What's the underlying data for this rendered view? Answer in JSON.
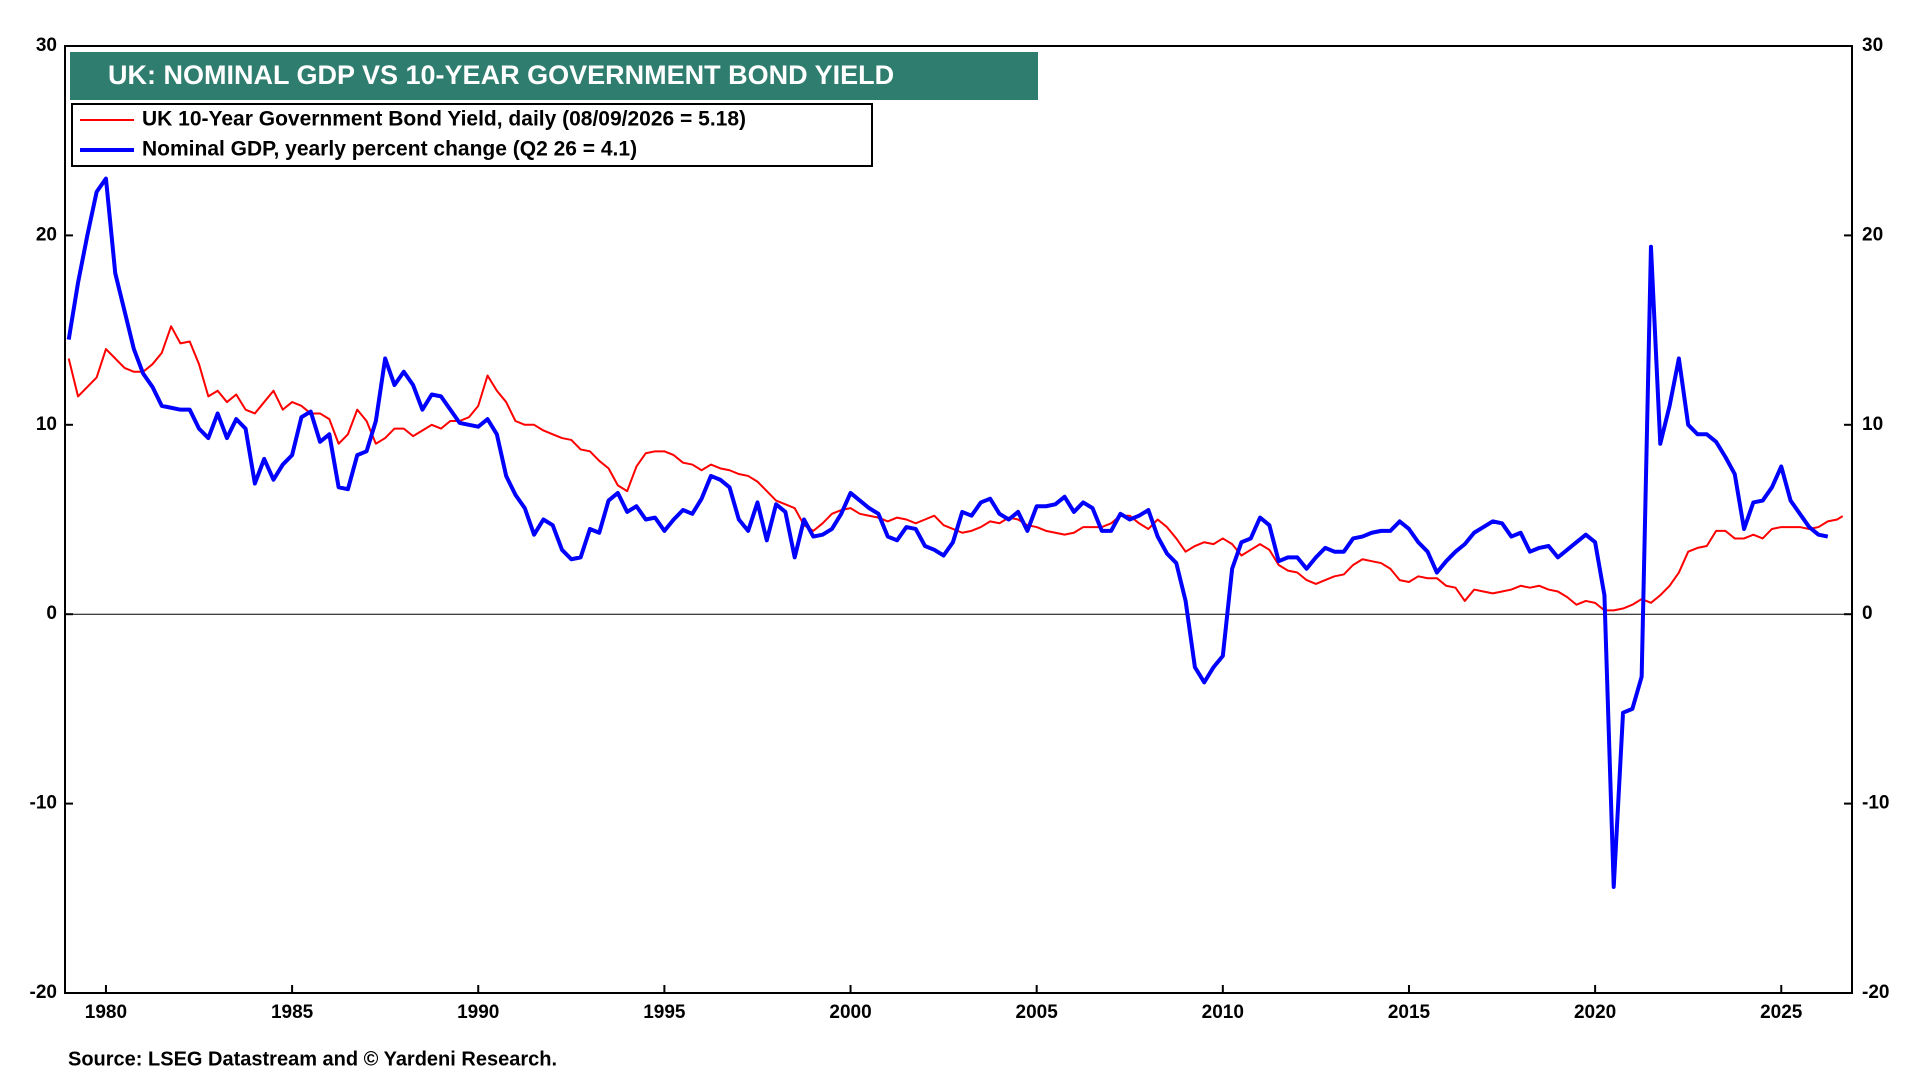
{
  "chart_data": {
    "type": "line",
    "title": "UK: NOMINAL GDP VS 10-YEAR GOVERNMENT BOND YIELD",
    "source": "Source: LSEG Datastream and © Yardeni Research.",
    "xlim": [
      1978.9,
      2026.9
    ],
    "xticks": [
      1980,
      1985,
      1990,
      1995,
      2000,
      2005,
      2010,
      2015,
      2020,
      2025
    ],
    "ylim": [
      -20,
      30
    ],
    "yticks": [
      -20,
      -10,
      0,
      10,
      20,
      30
    ],
    "y2lim": [
      -20,
      30
    ],
    "y2ticks": [
      -20,
      -10,
      0,
      10,
      20,
      30
    ],
    "zero_line": true,
    "legend": "top-left",
    "series": [
      {
        "name": "UK 10-Year Government Bond Yield, daily (08/09/2026 = 5.18)",
        "color": "#ff0000",
        "x": [
          1979,
          1979.25,
          1979.5,
          1979.75,
          1980,
          1980.25,
          1980.5,
          1980.75,
          1981,
          1981.25,
          1981.5,
          1981.75,
          1982,
          1982.25,
          1982.5,
          1982.75,
          1983,
          1983.25,
          1983.5,
          1983.75,
          1984,
          1984.25,
          1984.5,
          1984.75,
          1985,
          1985.25,
          1985.5,
          1985.75,
          1986,
          1986.25,
          1986.5,
          1986.75,
          1987,
          1987.25,
          1987.5,
          1987.75,
          1988,
          1988.25,
          1988.5,
          1988.75,
          1989,
          1989.25,
          1989.5,
          1989.75,
          1990,
          1990.25,
          1990.5,
          1990.75,
          1991,
          1991.25,
          1991.5,
          1991.75,
          1992,
          1992.25,
          1992.5,
          1992.75,
          1993,
          1993.25,
          1993.5,
          1993.75,
          1994,
          1994.25,
          1994.5,
          1994.75,
          1995,
          1995.25,
          1995.5,
          1995.75,
          1996,
          1996.25,
          1996.5,
          1996.75,
          1997,
          1997.25,
          1997.5,
          1997.75,
          1998,
          1998.25,
          1998.5,
          1998.75,
          1999,
          1999.25,
          1999.5,
          1999.75,
          2000,
          2000.25,
          2000.5,
          2000.75,
          2001,
          2001.25,
          2001.5,
          2001.75,
          2002,
          2002.25,
          2002.5,
          2002.75,
          2003,
          2003.25,
          2003.5,
          2003.75,
          2004,
          2004.25,
          2004.5,
          2004.75,
          2005,
          2005.25,
          2005.5,
          2005.75,
          2006,
          2006.25,
          2006.5,
          2006.75,
          2007,
          2007.25,
          2007.5,
          2007.75,
          2008,
          2008.25,
          2008.5,
          2008.75,
          2009,
          2009.25,
          2009.5,
          2009.75,
          2010,
          2010.25,
          2010.5,
          2010.75,
          2011,
          2011.25,
          2011.5,
          2011.75,
          2012,
          2012.25,
          2012.5,
          2012.75,
          2013,
          2013.25,
          2013.5,
          2013.75,
          2014,
          2014.25,
          2014.5,
          2014.75,
          2015,
          2015.25,
          2015.5,
          2015.75,
          2016,
          2016.25,
          2016.5,
          2016.75,
          2017,
          2017.25,
          2017.5,
          2017.75,
          2018,
          2018.25,
          2018.5,
          2018.75,
          2019,
          2019.25,
          2019.5,
          2019.75,
          2020,
          2020.25,
          2020.5,
          2020.75,
          2021,
          2021.25,
          2021.5,
          2021.75,
          2022,
          2022.25,
          2022.5,
          2022.75,
          2023,
          2023.25,
          2023.5,
          2023.75,
          2024,
          2024.25,
          2024.5,
          2024.75,
          2025,
          2025.25,
          2025.5,
          2025.75,
          2026,
          2026.25,
          2026.5,
          2026.65
        ],
        "values": [
          13.5,
          11.5,
          12,
          12.5,
          14,
          13.5,
          13,
          12.8,
          12.8,
          13.2,
          13.8,
          15.2,
          14.3,
          14.4,
          13.2,
          11.5,
          11.8,
          11.2,
          11.6,
          10.8,
          10.6,
          11.2,
          11.8,
          10.8,
          11.2,
          11,
          10.6,
          10.6,
          10.3,
          9,
          9.5,
          10.8,
          10.2,
          9,
          9.3,
          9.8,
          9.8,
          9.4,
          9.7,
          10,
          9.8,
          10.2,
          10.2,
          10.4,
          11,
          12.6,
          11.8,
          11.2,
          10.2,
          10,
          10,
          9.7,
          9.5,
          9.3,
          9.2,
          8.7,
          8.6,
          8.1,
          7.7,
          6.8,
          6.5,
          7.8,
          8.5,
          8.6,
          8.6,
          8.4,
          8,
          7.9,
          7.6,
          7.9,
          7.7,
          7.6,
          7.4,
          7.3,
          7,
          6.5,
          6,
          5.8,
          5.6,
          4.7,
          4.4,
          4.8,
          5.3,
          5.5,
          5.6,
          5.3,
          5.2,
          5.1,
          4.9,
          5.1,
          5,
          4.8,
          5,
          5.2,
          4.7,
          4.5,
          4.3,
          4.4,
          4.6,
          4.9,
          4.8,
          5.1,
          5,
          4.7,
          4.6,
          4.4,
          4.3,
          4.2,
          4.3,
          4.6,
          4.6,
          4.6,
          4.8,
          5.2,
          5.2,
          4.8,
          4.5,
          5,
          4.6,
          4,
          3.3,
          3.6,
          3.8,
          3.7,
          4,
          3.7,
          3.1,
          3.4,
          3.7,
          3.4,
          2.6,
          2.3,
          2.2,
          1.8,
          1.6,
          1.8,
          2,
          2.1,
          2.6,
          2.9,
          2.8,
          2.7,
          2.4,
          1.8,
          1.7,
          2,
          1.9,
          1.9,
          1.5,
          1.4,
          0.7,
          1.3,
          1.2,
          1.1,
          1.2,
          1.3,
          1.5,
          1.4,
          1.5,
          1.3,
          1.2,
          0.9,
          0.5,
          0.7,
          0.6,
          0.2,
          0.2,
          0.3,
          0.5,
          0.8,
          0.6,
          1,
          1.5,
          2.2,
          3.3,
          3.5,
          3.6,
          4.4,
          4.4,
          4,
          4,
          4.2,
          4,
          4.5,
          4.6,
          4.6,
          4.6,
          4.5,
          4.6,
          4.9,
          5,
          5.18
        ]
      },
      {
        "name": "Nominal GDP, yearly percent change (Q2 26 = 4.1)",
        "color": "#0000ff",
        "x": [
          1979,
          1979.25,
          1979.5,
          1979.75,
          1980,
          1980.25,
          1980.5,
          1980.75,
          1981,
          1981.25,
          1981.5,
          1981.75,
          1982,
          1982.25,
          1982.5,
          1982.75,
          1983,
          1983.25,
          1983.5,
          1983.75,
          1984,
          1984.25,
          1984.5,
          1984.75,
          1985,
          1985.25,
          1985.5,
          1985.75,
          1986,
          1986.25,
          1986.5,
          1986.75,
          1987,
          1987.25,
          1987.5,
          1987.75,
          1988,
          1988.25,
          1988.5,
          1988.75,
          1989,
          1989.25,
          1989.5,
          1989.75,
          1990,
          1990.25,
          1990.5,
          1990.75,
          1991,
          1991.25,
          1991.5,
          1991.75,
          1992,
          1992.25,
          1992.5,
          1992.75,
          1993,
          1993.25,
          1993.5,
          1993.75,
          1994,
          1994.25,
          1994.5,
          1994.75,
          1995,
          1995.25,
          1995.5,
          1995.75,
          1996,
          1996.25,
          1996.5,
          1996.75,
          1997,
          1997.25,
          1997.5,
          1997.75,
          1998,
          1998.25,
          1998.5,
          1998.75,
          1999,
          1999.25,
          1999.5,
          1999.75,
          2000,
          2000.25,
          2000.5,
          2000.75,
          2001,
          2001.25,
          2001.5,
          2001.75,
          2002,
          2002.25,
          2002.5,
          2002.75,
          2003,
          2003.25,
          2003.5,
          2003.75,
          2004,
          2004.25,
          2004.5,
          2004.75,
          2005,
          2005.25,
          2005.5,
          2005.75,
          2006,
          2006.25,
          2006.5,
          2006.75,
          2007,
          2007.25,
          2007.5,
          2007.75,
          2008,
          2008.25,
          2008.5,
          2008.75,
          2009,
          2009.25,
          2009.5,
          2009.75,
          2010,
          2010.25,
          2010.5,
          2010.75,
          2011,
          2011.25,
          2011.5,
          2011.75,
          2012,
          2012.25,
          2012.5,
          2012.75,
          2013,
          2013.25,
          2013.5,
          2013.75,
          2014,
          2014.25,
          2014.5,
          2014.75,
          2015,
          2015.25,
          2015.5,
          2015.75,
          2016,
          2016.25,
          2016.5,
          2016.75,
          2017,
          2017.25,
          2017.5,
          2017.75,
          2018,
          2018.25,
          2018.5,
          2018.75,
          2019,
          2019.25,
          2019.5,
          2019.75,
          2020,
          2020.25,
          2020.5,
          2020.75,
          2021,
          2021.25,
          2021.5,
          2021.75,
          2022,
          2022.25,
          2022.5,
          2022.75,
          2023,
          2023.25,
          2023.5,
          2023.75,
          2024,
          2024.25,
          2024.5,
          2024.75,
          2025,
          2025.25,
          2025.5,
          2025.75,
          2026,
          2026.25
        ],
        "values": [
          14.5,
          17.5,
          20,
          22.3,
          23,
          18,
          16,
          14,
          12.7,
          12,
          11,
          10.9,
          10.8,
          10.8,
          9.8,
          9.3,
          10.6,
          9.3,
          10.3,
          9.8,
          6.9,
          8.2,
          7.1,
          7.9,
          8.4,
          10.4,
          10.7,
          9.1,
          9.5,
          6.7,
          6.6,
          8.4,
          8.6,
          10.2,
          13.5,
          12.1,
          12.8,
          12.1,
          10.8,
          11.6,
          11.5,
          10.8,
          10.1,
          10,
          9.9,
          10.3,
          9.5,
          7.3,
          6.3,
          5.6,
          4.2,
          5,
          4.7,
          3.4,
          2.9,
          3,
          4.5,
          4.3,
          6,
          6.4,
          5.4,
          5.7,
          5,
          5.1,
          4.4,
          5,
          5.5,
          5.3,
          6.1,
          7.3,
          7.1,
          6.7,
          5,
          4.4,
          5.9,
          3.9,
          5.8,
          5.4,
          3,
          5,
          4.1,
          4.2,
          4.5,
          5.3,
          6.4,
          6,
          5.6,
          5.3,
          4.1,
          3.9,
          4.6,
          4.5,
          3.6,
          3.4,
          3.1,
          3.8,
          5.4,
          5.2,
          5.9,
          6.1,
          5.3,
          5,
          5.4,
          4.4,
          5.7,
          5.7,
          5.8,
          6.2,
          5.4,
          5.9,
          5.6,
          4.4,
          4.4,
          5.3,
          5,
          5.2,
          5.5,
          4.1,
          3.2,
          2.7,
          0.7,
          -2.8,
          -3.6,
          -2.8,
          -2.2,
          2.4,
          3.8,
          4,
          5.1,
          4.7,
          2.8,
          3,
          3,
          2.4,
          3,
          3.5,
          3.3,
          3.3,
          4,
          4.1,
          4.3,
          4.4,
          4.4,
          4.9,
          4.5,
          3.8,
          3.3,
          2.2,
          2.8,
          3.3,
          3.7,
          4.3,
          4.6,
          4.9,
          4.8,
          4.1,
          4.3,
          3.3,
          3.5,
          3.6,
          3,
          3.4,
          3.8,
          4.2,
          3.8,
          1,
          -14.4,
          -5.2,
          -5,
          -3.3,
          19.4,
          9,
          11,
          13.5,
          10,
          9.5,
          9.5,
          9.1,
          8.3,
          7.4,
          4.5,
          5.9,
          6,
          6.7,
          7.8,
          6,
          5.3,
          4.6,
          4.2,
          4.1
        ]
      }
    ]
  }
}
